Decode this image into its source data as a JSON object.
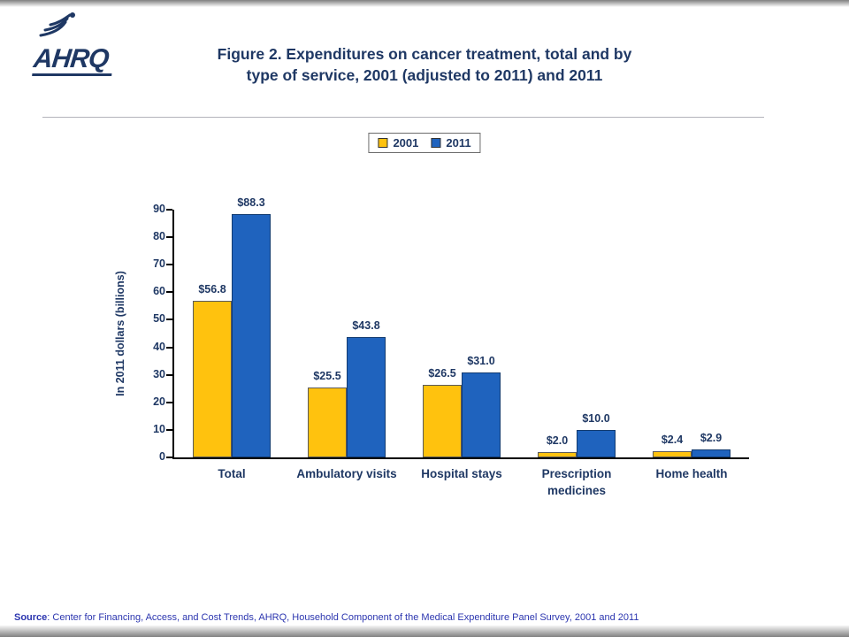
{
  "header": {
    "logo_text": "AHRQ",
    "title_line1": "Figure 2. Expenditures on cancer treatment, total and by",
    "title_line2": "type of service, 2001 (adjusted to 2011) and 2011"
  },
  "chart_data": {
    "type": "bar",
    "title": "Figure 2. Expenditures on cancer treatment, total and by type of service, 2001 (adjusted to 2011) and 2011",
    "categories": [
      "Total",
      "Ambulatory visits",
      "Hospital stays",
      "Prescription medicines",
      "Home health"
    ],
    "series": [
      {
        "name": "2001",
        "color": "#FFC20E",
        "border": "#5a5a5a",
        "values": [
          56.8,
          25.5,
          26.5,
          2.0,
          2.4
        ]
      },
      {
        "name": "2011",
        "color": "#1F63BE",
        "border": "#123B70",
        "values": [
          88.3,
          43.8,
          31.0,
          10.0,
          2.9
        ]
      }
    ],
    "value_labels": [
      [
        "$56.8",
        "$25.5",
        "$26.5",
        "$2.0",
        "$2.4"
      ],
      [
        "$88.3",
        "$43.8",
        "$31.0",
        "$10.0",
        "$2.9"
      ]
    ],
    "xlabel": "",
    "ylabel": "In 2011 dollars (billions)",
    "ylim": [
      0,
      90
    ],
    "ytick_step": 10,
    "grid": false,
    "legend_position": "top-center"
  },
  "footer": {
    "source_label": "Source",
    "source_text": ": Center for Financing, Access, and Cost Trends, AHRQ, Household Component of the Medical Expenditure Panel Survey, 2001 and 2011"
  }
}
